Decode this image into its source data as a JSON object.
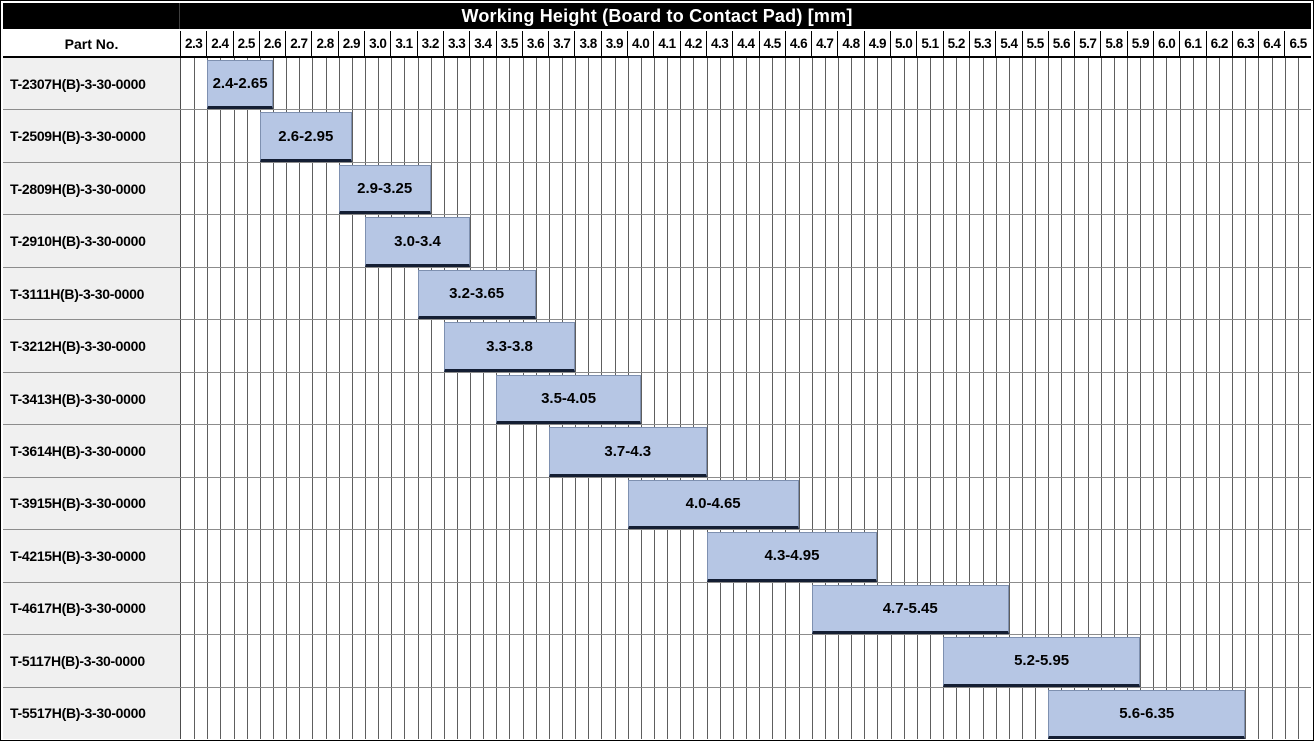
{
  "title": "Working Height (Board to Contact Pad) [mm]",
  "header": {
    "part_col_label": "Part No."
  },
  "colors": {
    "title_bg": "#000000",
    "title_fg": "#ffffff",
    "bar_fill": "#b6c6e4",
    "bar_edge": "#7e90b0",
    "bar_bottom_edge": "#141e33",
    "row_label_bg": "#f0f0f0",
    "grid_line": "#5e5e5e"
  },
  "chart_data": {
    "type": "bar",
    "subtype": "horizontal-range",
    "title": "Working Height (Board to Contact Pad) [mm]",
    "xlabel": "Working Height (Board to Contact Pad) [mm]",
    "ylabel": "Part No.",
    "xlim": [
      2.3,
      6.6
    ],
    "tick_step": 0.1,
    "minor_step": 0.05,
    "grid": true,
    "x_tick_labels": [
      "2.3",
      "2.4",
      "2.5",
      "2.6",
      "2.7",
      "2.8",
      "2.9",
      "3.0",
      "3.1",
      "3.2",
      "3.3",
      "3.4",
      "3.5",
      "3.6",
      "3.7",
      "3.8",
      "3.9",
      "4.0",
      "4.1",
      "4.2",
      "4.3",
      "4.4",
      "4.5",
      "4.6",
      "4.7",
      "4.8",
      "4.9",
      "5.0",
      "5.1",
      "5.2",
      "5.3",
      "5.4",
      "5.5",
      "5.6",
      "5.7",
      "5.8",
      "5.9",
      "6.0",
      "6.1",
      "6.2",
      "6.3",
      "6.4",
      "6.5"
    ],
    "rows": [
      {
        "part_no": "T-2307H(B)-3-30-0000",
        "start": 2.4,
        "end": 2.65,
        "label": "2.4-2.65"
      },
      {
        "part_no": "T-2509H(B)-3-30-0000",
        "start": 2.6,
        "end": 2.95,
        "label": "2.6-2.95"
      },
      {
        "part_no": "T-2809H(B)-3-30-0000",
        "start": 2.9,
        "end": 3.25,
        "label": "2.9-3.25"
      },
      {
        "part_no": "T-2910H(B)-3-30-0000",
        "start": 3.0,
        "end": 3.4,
        "label": "3.0-3.4"
      },
      {
        "part_no": "T-3111H(B)-3-30-0000",
        "start": 3.2,
        "end": 3.65,
        "label": "3.2-3.65"
      },
      {
        "part_no": "T-3212H(B)-3-30-0000",
        "start": 3.3,
        "end": 3.8,
        "label": "3.3-3.8"
      },
      {
        "part_no": "T-3413H(B)-3-30-0000",
        "start": 3.5,
        "end": 4.05,
        "label": "3.5-4.05"
      },
      {
        "part_no": "T-3614H(B)-3-30-0000",
        "start": 3.7,
        "end": 4.3,
        "label": "3.7-4.3"
      },
      {
        "part_no": "T-3915H(B)-3-30-0000",
        "start": 4.0,
        "end": 4.65,
        "label": "4.0-4.65"
      },
      {
        "part_no": "T-4215H(B)-3-30-0000",
        "start": 4.3,
        "end": 4.95,
        "label": "4.3-4.95"
      },
      {
        "part_no": "T-4617H(B)-3-30-0000",
        "start": 4.7,
        "end": 5.45,
        "label": "4.7-5.45"
      },
      {
        "part_no": "T-5117H(B)-3-30-0000",
        "start": 5.2,
        "end": 5.95,
        "label": "5.2-5.95"
      },
      {
        "part_no": "T-5517H(B)-3-30-0000",
        "start": 5.6,
        "end": 6.35,
        "label": "5.6-6.35"
      }
    ]
  }
}
